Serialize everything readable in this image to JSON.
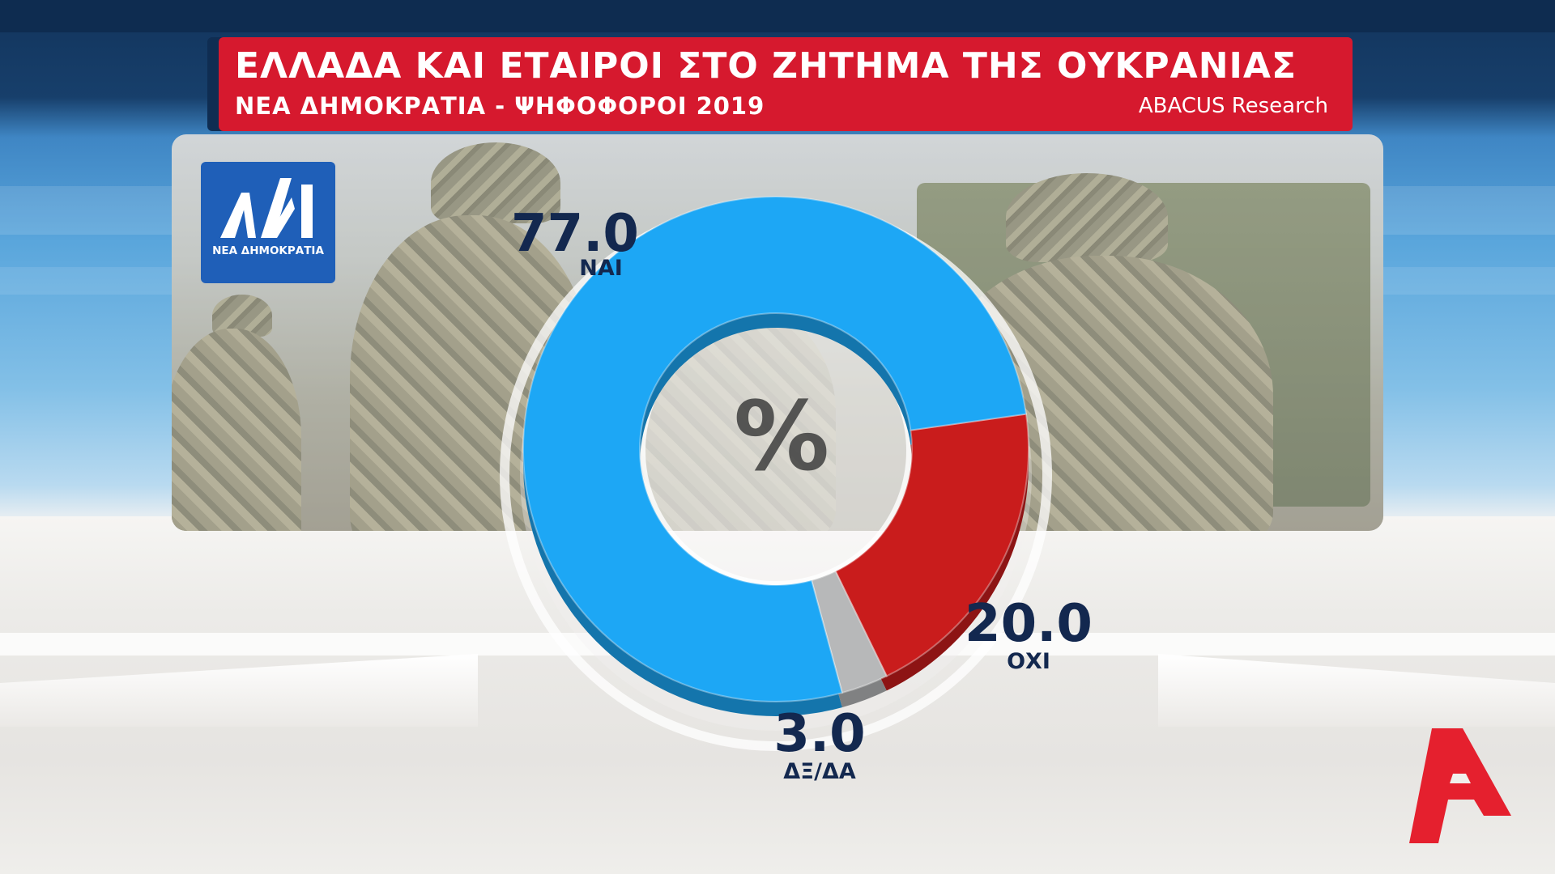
{
  "header": {
    "title": "ΕΛΛΑΔΑ ΚΑΙ ΕΤΑΙΡΟΙ ΣΤΟ ΖΗΤΗΜΑ ΤΗΣ ΟΥΚΡΑΝΙΑΣ",
    "subtitle": "ΝΕΑ ΔΗΜΟΚΡΑΤΙΑ - ΨΗΦΟΦΟΡΟΙ 2019",
    "source": "ABACUS Research"
  },
  "party_logo": {
    "text": "ΝΕΑ ΔΗΜΟΚΡΑΤΙΑ",
    "color": "#1f5fb8"
  },
  "center_symbol": "%",
  "colors": {
    "title_bar": "#d6192e",
    "yes": "#1da7f5",
    "no": "#c91c1c",
    "undecided": "#b7b8b9",
    "label": "#13284f"
  },
  "chart_data": {
    "type": "pie",
    "title": "ΕΛΛΑΔΑ ΚΑΙ ΕΤΑΙΡΟΙ ΣΤΟ ΖΗΤΗΜΑ ΤΗΣ ΟΥΚΡΑΝΙΑΣ",
    "subtitle": "ΝΕΑ ΔΗΜΟΚΡΑΤΙΑ - ΨΗΦΟΦΟΡΟΙ 2019",
    "unit": "%",
    "donut": true,
    "slices": [
      {
        "label": "ΝΑΙ",
        "value": 77.0,
        "display": "77.0",
        "color": "#1da7f5"
      },
      {
        "label": "ΟΧΙ",
        "value": 20.0,
        "display": "20.0",
        "color": "#c91c1c"
      },
      {
        "label": "ΔΞ/ΔΑ",
        "value": 3.0,
        "display": "3.0",
        "color": "#b7b8b9"
      }
    ]
  }
}
